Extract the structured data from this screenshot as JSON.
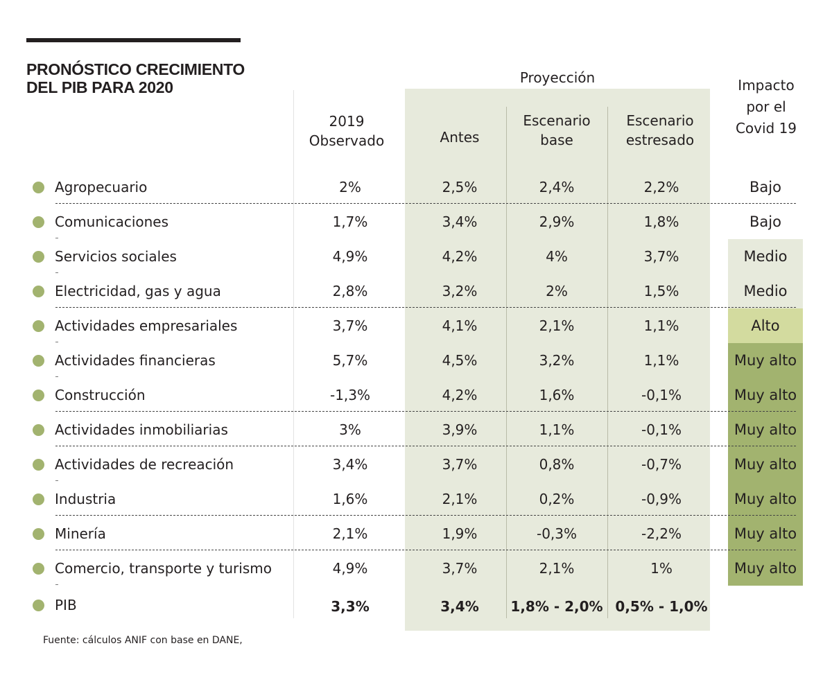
{
  "chart_data": {
    "type": "table",
    "title": "PRONÓSTICO CRECIMIENTO DEL PIB PARA 2020",
    "title_lines": [
      "PRONÓSTICO CRECIMIENTO",
      "DEL PIB PARA 2020"
    ],
    "projection_header": "Proyección",
    "columns": {
      "observed": [
        "2019",
        "Observado"
      ],
      "before": [
        "Antes"
      ],
      "base": [
        "Escenario",
        "base"
      ],
      "stressed": [
        "Escenario",
        "estresado"
      ],
      "impact": [
        "Impacto",
        "por el",
        "Covid 19"
      ]
    },
    "rows": [
      {
        "sector": "Agropecuario",
        "observed": "2%",
        "before": "2,5%",
        "base": "2,4%",
        "stressed": "2,2%",
        "impact": "Bajo"
      },
      {
        "sector": "Comunicaciones",
        "observed": "1,7%",
        "before": "3,4%",
        "base": "2,9%",
        "stressed": "1,8%",
        "impact": "Bajo"
      },
      {
        "sector": "Servicios sociales",
        "observed": "4,9%",
        "before": "4,2%",
        "base": "4%",
        "stressed": "3,7%",
        "impact": "Medio"
      },
      {
        "sector": "Electricidad, gas y agua",
        "observed": "2,8%",
        "before": "3,2%",
        "base": "2%",
        "stressed": "1,5%",
        "impact": "Medio"
      },
      {
        "sector": "Actividades empresariales",
        "observed": "3,7%",
        "before": "4,1%",
        "base": "2,1%",
        "stressed": "1,1%",
        "impact": "Alto"
      },
      {
        "sector": "Actividades financieras",
        "observed": "5,7%",
        "before": "4,5%",
        "base": "3,2%",
        "stressed": "1,1%",
        "impact": "Muy alto"
      },
      {
        "sector": "Construcción",
        "observed": "-1,3%",
        "before": "4,2%",
        "base": "1,6%",
        "stressed": "-0,1%",
        "impact": "Muy alto"
      },
      {
        "sector": "Actividades inmobiliarias",
        "observed": "3%",
        "before": "3,9%",
        "base": "1,1%",
        "stressed": "-0,1%",
        "impact": "Muy alto"
      },
      {
        "sector": "Actividades de recreación",
        "observed": "3,4%",
        "before": "3,7%",
        "base": "0,8%",
        "stressed": "-0,7%",
        "impact": "Muy alto"
      },
      {
        "sector": "Industria",
        "observed": "1,6%",
        "before": "2,1%",
        "base": "0,2%",
        "stressed": "-0,9%",
        "impact": "Muy alto"
      },
      {
        "sector": "Minería",
        "observed": "2,1%",
        "before": "1,9%",
        "base": "-0,3%",
        "stressed": "-2,2%",
        "impact": "Muy alto"
      },
      {
        "sector": "Comercio, transporte y turismo",
        "observed": "4,9%",
        "before": "3,7%",
        "base": "2,1%",
        "stressed": "1%",
        "impact": "Muy alto"
      }
    ],
    "total": {
      "sector": "PIB",
      "observed": "3,3%",
      "before": "3,4%",
      "base": "1,8% - 2,0%",
      "stressed": "0,5% - 1,0%"
    },
    "source": "Fuente: cálculos ANIF con base en DANE,"
  },
  "colors": {
    "projection_bg": "#e7eadc",
    "dot": "#a2b36f",
    "impact_bajo": "#ffffff",
    "impact_medio": "#e7eadc",
    "impact_alto": "#d3db9f",
    "impact_muy_alto": "#a2b36f",
    "text": "#231f20"
  }
}
